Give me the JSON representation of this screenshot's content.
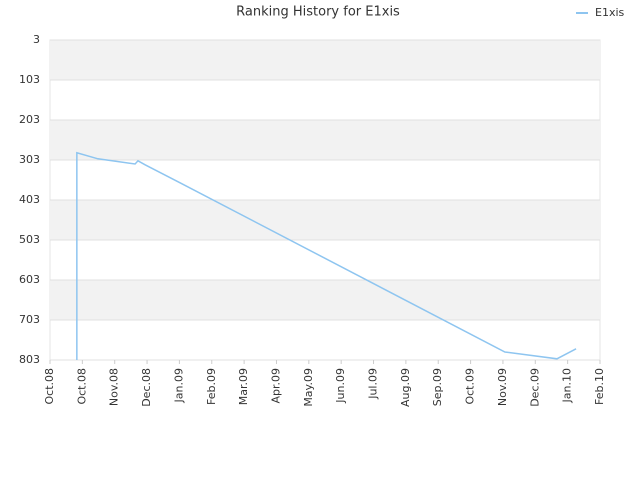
{
  "chart_data": {
    "type": "line",
    "title": "Ranking History for E1xis",
    "series": [
      {
        "name": "E1xis",
        "color": "#8ec5f0",
        "x": [
          0.83,
          0.83,
          1.48,
          2.63,
          2.72,
          2.94,
          4.02,
          14.06,
          15.67,
          16.26
        ],
        "values": [
          803,
          285,
          300,
          313,
          305,
          315,
          360,
          783,
          800,
          775
        ]
      }
    ],
    "xlim": [
      0,
      17
    ],
    "xticks": [
      {
        "value": 0,
        "label": "Oct.08"
      },
      {
        "value": 1,
        "label": "Oct.08"
      },
      {
        "value": 2,
        "label": "Nov.08"
      },
      {
        "value": 3,
        "label": "Dec.08"
      },
      {
        "value": 4,
        "label": "Jan.09"
      },
      {
        "value": 5,
        "label": "Feb.09"
      },
      {
        "value": 6,
        "label": "Mar.09"
      },
      {
        "value": 7,
        "label": "Apr.09"
      },
      {
        "value": 8,
        "label": "May.09"
      },
      {
        "value": 9,
        "label": "Jun.09"
      },
      {
        "value": 10,
        "label": "Jul.09"
      },
      {
        "value": 11,
        "label": "Aug.09"
      },
      {
        "value": 12,
        "label": "Sep.09"
      },
      {
        "value": 13,
        "label": "Oct.09"
      },
      {
        "value": 14,
        "label": "Nov.09"
      },
      {
        "value": 15,
        "label": "Dec.09"
      },
      {
        "value": 16,
        "label": "Jan.10"
      },
      {
        "value": 17,
        "label": "Feb.10"
      }
    ],
    "ylim": [
      803,
      3
    ],
    "yticks": [
      3,
      103,
      203,
      303,
      403,
      503,
      603,
      703,
      803
    ],
    "grid": true,
    "legend": "top-right"
  }
}
